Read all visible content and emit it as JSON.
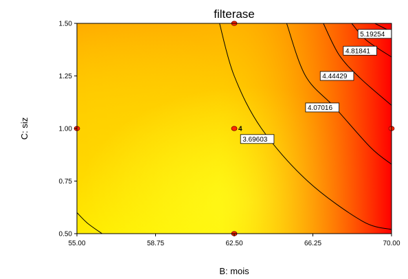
{
  "chart_data": {
    "type": "contour",
    "title": "filterase",
    "xlabel": "B: mois",
    "ylabel": "C: siz",
    "x_ticks": [
      "55.00",
      "58.75",
      "62.50",
      "66.25",
      "70.00"
    ],
    "y_ticks": [
      "0.50",
      "0.75",
      "1.00",
      "1.25",
      "1.50"
    ],
    "xlim": [
      55,
      70
    ],
    "ylim": [
      0.5,
      1.5
    ],
    "colormap": {
      "low": "#ffff00",
      "high": "#ff0000"
    },
    "contours": [
      {
        "label": "3.69603",
        "points": [
          [
            61.8,
            1.5
          ],
          [
            62.5,
            1.25
          ],
          [
            63.8,
            1.0
          ],
          [
            66.0,
            0.75
          ],
          [
            68.6,
            0.56
          ],
          [
            70.0,
            0.52
          ]
        ],
        "label_at": [
          62.9,
          0.95
        ]
      },
      {
        "label": "4.07016",
        "points": [
          [
            65.0,
            1.5
          ],
          [
            65.9,
            1.25
          ],
          [
            67.3,
            1.1
          ],
          [
            69.0,
            0.91
          ],
          [
            70.0,
            0.83
          ]
        ],
        "label_at": [
          66.0,
          1.1
        ]
      },
      {
        "label": "4.44429",
        "points": [
          [
            66.75,
            1.5
          ],
          [
            67.5,
            1.35
          ],
          [
            68.5,
            1.24
          ],
          [
            70.0,
            1.11
          ]
        ],
        "label_at": [
          66.7,
          1.25
        ]
      },
      {
        "label": "4.81841",
        "points": [
          [
            68.1,
            1.5
          ],
          [
            68.8,
            1.42
          ],
          [
            70.0,
            1.34
          ]
        ],
        "label_at": [
          67.8,
          1.37
        ]
      },
      {
        "label": "5.19254",
        "points": [
          [
            69.2,
            1.5
          ],
          [
            70.0,
            1.46
          ]
        ],
        "label_at": [
          68.5,
          1.45
        ]
      },
      {
        "label": "",
        "points": [
          [
            55.0,
            0.6
          ],
          [
            55.5,
            0.55
          ],
          [
            56.2,
            0.5
          ]
        ],
        "label_at": null
      }
    ],
    "design_points": [
      {
        "x": 62.5,
        "y": 1.5,
        "label": ""
      },
      {
        "x": 55.0,
        "y": 1.0,
        "label": ""
      },
      {
        "x": 62.5,
        "y": 1.0,
        "label": "4"
      },
      {
        "x": 70.0,
        "y": 1.0,
        "label": ""
      },
      {
        "x": 62.5,
        "y": 0.5,
        "label": ""
      }
    ],
    "grid": false,
    "legend": "none"
  }
}
